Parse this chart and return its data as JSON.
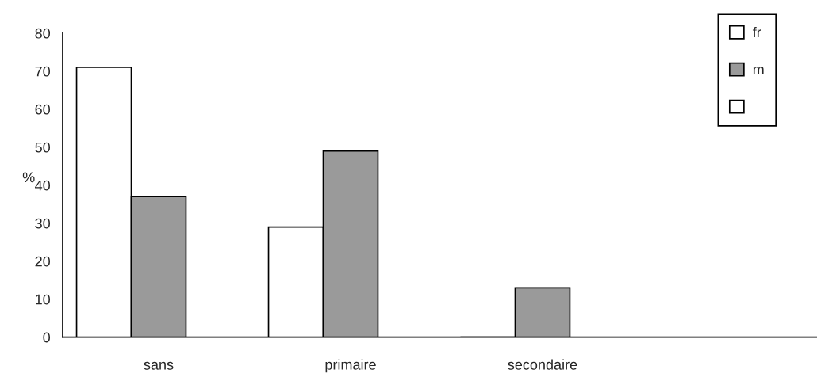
{
  "chart_data": {
    "type": "bar",
    "ylabel": "%",
    "categories": [
      "sans",
      "primaire",
      "secondaire",
      null
    ],
    "series": [
      {
        "name": "fr",
        "color": "#ffffff",
        "values": [
          71,
          29,
          0,
          null
        ]
      },
      {
        "name": "m",
        "color": "#9a9a9a",
        "values": [
          37,
          49,
          13,
          null
        ]
      },
      {
        "color": "#ffffff",
        "values": [
          null,
          null,
          null,
          null
        ]
      }
    ],
    "ylim": [
      0,
      80
    ],
    "yticks": [
      0,
      10,
      20,
      30,
      40,
      50,
      60,
      70,
      80
    ],
    "grid": false,
    "legend": "top right"
  }
}
